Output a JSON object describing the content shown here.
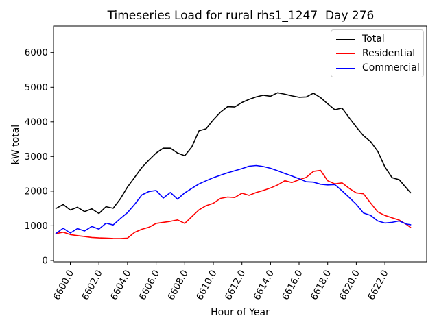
{
  "chart_data": {
    "type": "line",
    "title": "Timeseries Load for rural rhs1_1247  Day 276",
    "xlabel": "Hour of Year",
    "ylabel": "kW total",
    "grid": false,
    "legend": {
      "position": "upper right"
    },
    "xlim": [
      6598.825,
      6624.92
    ],
    "ylim": [
      -40,
      6766
    ],
    "x_ticks": {
      "values": [
        6600,
        6602,
        6604,
        6606,
        6608,
        6610,
        6612,
        6614,
        6616,
        6618,
        6620,
        6622
      ],
      "labels": [
        "6600.0",
        "6602.0",
        "6604.0",
        "6606.0",
        "6608.0",
        "6610.0",
        "6612.0",
        "6614.0",
        "6616.0",
        "6618.0",
        "6620.0",
        "6622.0"
      ],
      "rotation_deg": -62
    },
    "y_ticks": [
      0,
      1000,
      2000,
      3000,
      4000,
      5000,
      6000
    ],
    "x": [
      6599,
      6599.5,
      6600,
      6600.5,
      6601,
      6601.5,
      6602,
      6602.5,
      6603,
      6603.5,
      6604,
      6604.5,
      6605,
      6605.5,
      6606,
      6606.5,
      6607,
      6607.5,
      6608,
      6608.5,
      6609,
      6609.5,
      6610,
      6610.5,
      6611,
      6611.5,
      6612,
      6612.5,
      6613,
      6613.5,
      6614,
      6614.5,
      6615,
      6615.5,
      6616,
      6616.5,
      6617,
      6617.5,
      6618,
      6618.5,
      6619,
      6619.5,
      6620,
      6620.5,
      6621,
      6621.5,
      6622,
      6622.5,
      6623,
      6623.5,
      6623.8
    ],
    "series": [
      {
        "name": "Total",
        "color": "#000000",
        "values": [
          1500,
          1615,
          1455,
          1535,
          1410,
          1490,
          1355,
          1550,
          1505,
          1780,
          2120,
          2400,
          2680,
          2900,
          3100,
          3240,
          3240,
          3100,
          3020,
          3280,
          3740,
          3800,
          4060,
          4280,
          4440,
          4430,
          4560,
          4650,
          4720,
          4770,
          4740,
          4840,
          4800,
          4750,
          4710,
          4720,
          4830,
          4700,
          4520,
          4350,
          4400,
          4120,
          3850,
          3600,
          3430,
          3150,
          2700,
          2390,
          2330,
          2090,
          1950
        ]
      },
      {
        "name": "Residential",
        "color": "#ff0000",
        "values": [
          775,
          815,
          745,
          715,
          690,
          665,
          650,
          645,
          635,
          630,
          645,
          810,
          900,
          960,
          1070,
          1100,
          1130,
          1170,
          1070,
          1265,
          1460,
          1580,
          1650,
          1790,
          1830,
          1815,
          1940,
          1880,
          1960,
          2020,
          2090,
          2180,
          2300,
          2250,
          2330,
          2400,
          2570,
          2600,
          2300,
          2210,
          2240,
          2080,
          1950,
          1925,
          1655,
          1400,
          1300,
          1230,
          1165,
          1040,
          950
        ]
      },
      {
        "name": "Commercial",
        "color": "#0000ff",
        "values": [
          780,
          930,
          790,
          920,
          850,
          980,
          905,
          1075,
          1025,
          1210,
          1380,
          1620,
          1890,
          1990,
          2020,
          1800,
          1960,
          1770,
          1950,
          2080,
          2210,
          2300,
          2390,
          2460,
          2530,
          2590,
          2650,
          2720,
          2740,
          2710,
          2660,
          2590,
          2510,
          2440,
          2360,
          2270,
          2260,
          2200,
          2180,
          2190,
          2010,
          1820,
          1620,
          1370,
          1300,
          1140,
          1080,
          1100,
          1140,
          1050,
          1030
        ]
      }
    ]
  }
}
